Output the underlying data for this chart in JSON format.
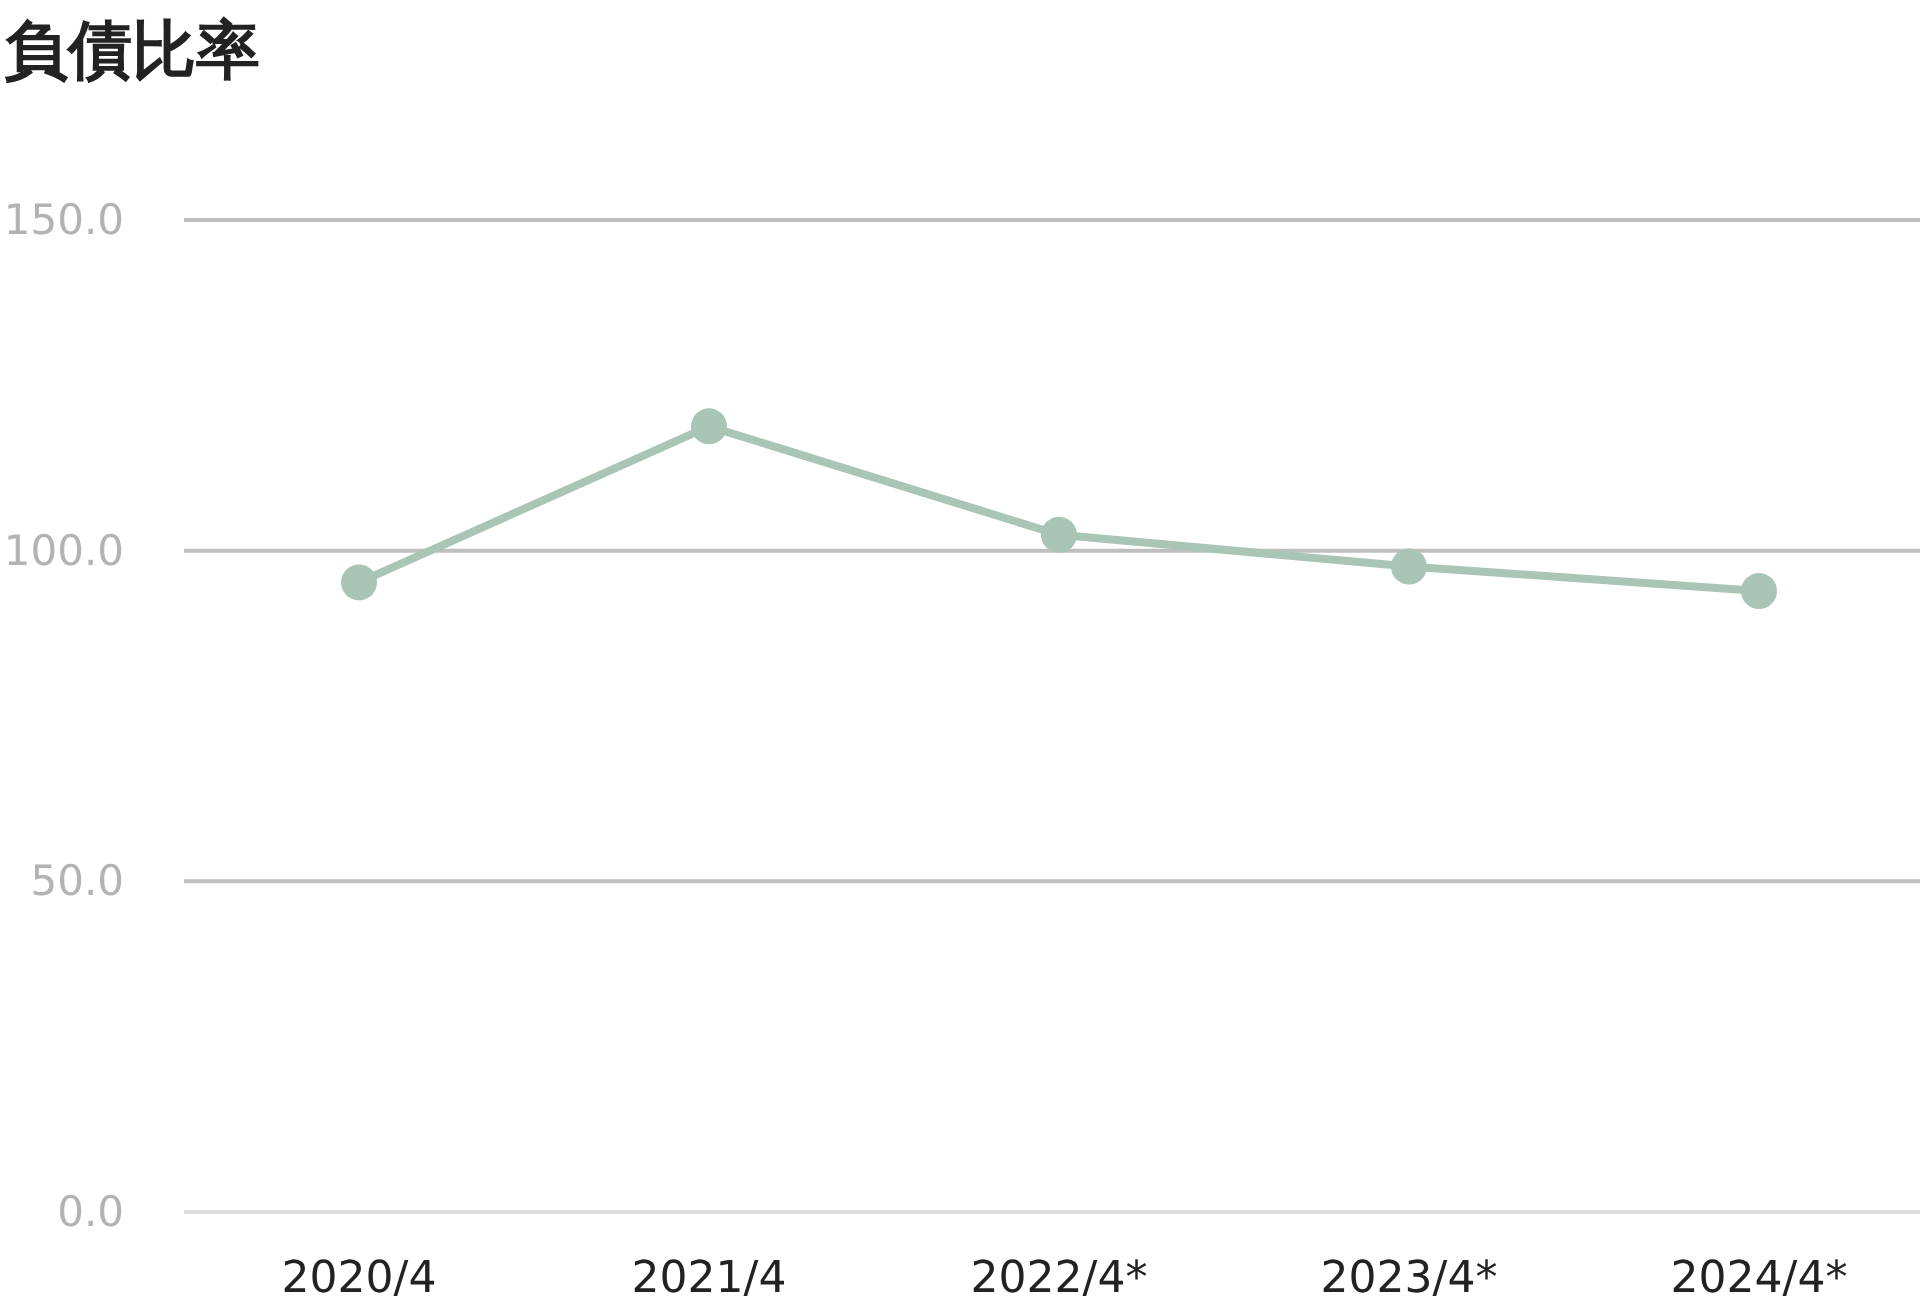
{
  "chart_data": {
    "type": "line",
    "title": "負債比率",
    "categories": [
      "2020/4",
      "2021/4",
      "2022/4*",
      "2023/4*",
      "2024/4*"
    ],
    "series": [
      {
        "color": "#a9c5b6",
        "values": [
          95.2,
          118.8,
          102.4,
          97.6,
          93.9
        ]
      }
    ],
    "ylim": [
      0,
      150
    ],
    "yticks": [
      {
        "value": 0,
        "label": "0.0"
      },
      {
        "value": 50,
        "label": "50.0"
      },
      {
        "value": 100,
        "label": "100.0"
      },
      {
        "value": 150,
        "label": "150.0"
      }
    ],
    "grid": "y",
    "marker": "circle",
    "line_style": "solid"
  }
}
